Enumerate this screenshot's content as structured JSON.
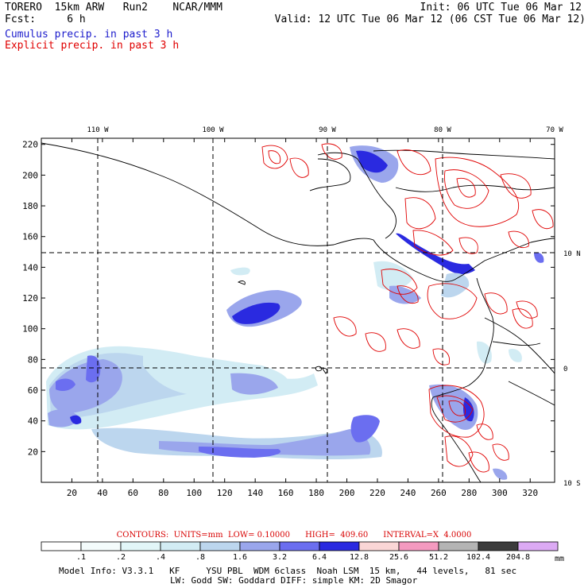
{
  "header": {
    "line1_left": "TORERO  15km ARW   Run2    NCAR/MMM",
    "line2_left": "Fcst:     6 h",
    "line1_right": "Init: 06 UTC Tue 06 Mar 12",
    "line2_right": "Valid: 12 UTC Tue 06 Mar 12 (06 CST Tue 06 Mar 12)",
    "cumulus_label": "Cumulus precip. in past 3 h",
    "explicit_label": "Explicit precip. in past 3 h"
  },
  "map": {
    "top_lon_labels": [
      "110 W",
      "100 W",
      "90 W",
      "80 W",
      "70 W"
    ],
    "right_lat_labels": [
      "10 N",
      "0",
      "10 S"
    ],
    "y_ticks": [
      20,
      40,
      60,
      80,
      100,
      120,
      140,
      160,
      180,
      200,
      220
    ],
    "x_ticks": [
      20,
      40,
      60,
      80,
      100,
      120,
      140,
      160,
      180,
      200,
      220,
      240,
      260,
      280,
      300,
      320
    ],
    "grid_x": [
      39,
      113,
      184,
      260
    ],
    "grid_y": [
      77,
      150
    ],
    "x_range": [
      0,
      336
    ],
    "y_range": [
      0,
      224
    ],
    "colors": {
      "coast": "#000000",
      "contour": "#e00000",
      "grid": "#000000"
    }
  },
  "contours_line": "CONTOURS:  UNITS=mm  LOW= 0.10000      HIGH=  409.60      INTERVAL=X  4.0000",
  "colorbar": {
    "labels": [
      ".1",
      ".2",
      ".4",
      ".8",
      "1.6",
      "3.2",
      "6.4",
      "12.8",
      "25.6",
      "51.2",
      "102.4",
      "204.8"
    ],
    "colors": [
      "#ffffff",
      "#f4fcfc",
      "#e2f6f8",
      "#d2ecf4",
      "#bcd6ee",
      "#9aa6ec",
      "#6b6ef0",
      "#2a2ae0",
      "#fad6d6",
      "#f49ac0",
      "#b4b4b4",
      "#3c3c3c",
      "#dcaaf4"
    ],
    "unit": "mm"
  },
  "footer": {
    "line1": "Model Info: V3.3.1   KF     YSU PBL  WDM 6class  Noah LSM  15 km,   44 levels,   81 sec",
    "line2": "LW: Godd SW: Goddard DIFF: simple KM: 2D Smagor"
  }
}
